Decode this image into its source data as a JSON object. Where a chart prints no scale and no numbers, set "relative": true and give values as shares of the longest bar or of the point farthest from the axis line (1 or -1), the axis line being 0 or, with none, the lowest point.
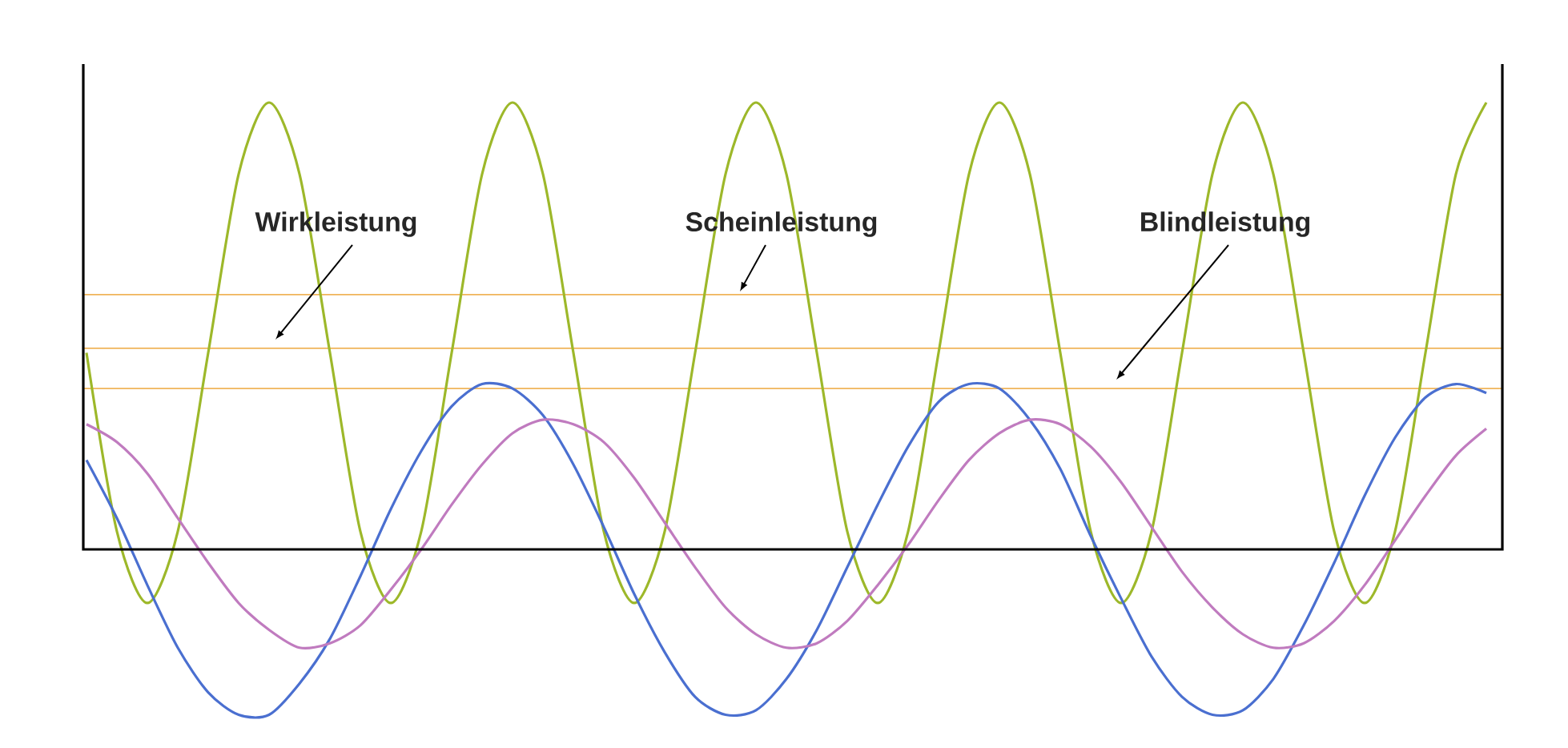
{
  "chart_data": {
    "type": "line",
    "relative": true,
    "categories": [
      null,
      null,
      null,
      null,
      null,
      null,
      null,
      null,
      null,
      null,
      null,
      null,
      null,
      null,
      null,
      null,
      null,
      null,
      null,
      null,
      null,
      null,
      null,
      null,
      null,
      null,
      null,
      null,
      null,
      null,
      null,
      null,
      null,
      null,
      null,
      null,
      null,
      null,
      null,
      null,
      null,
      null,
      null,
      null,
      null,
      null,
      null
    ],
    "series": [
      {
        "color": "#9db82a",
        "values": [
          0.44,
          0.04,
          -0.12,
          0.04,
          0.44,
          0.84,
          1,
          0.84,
          0.44,
          0.04,
          -0.12,
          0.04,
          0.44,
          0.84,
          1,
          0.84,
          0.44,
          0.04,
          -0.12,
          0.04,
          0.44,
          0.84,
          1,
          0.84,
          0.44,
          0.04,
          -0.12,
          0.04,
          0.44,
          0.84,
          1,
          0.84,
          0.44,
          0.04,
          -0.12,
          0.04,
          0.44,
          0.84,
          1,
          0.84,
          0.44,
          0.04,
          -0.12,
          0.04,
          0.44,
          0.84,
          1
        ]
      },
      {
        "color": "#4a6fd0",
        "values": [
          0.2,
          0.07,
          -0.08,
          -0.22,
          -0.32,
          -0.37,
          -0.37,
          -0.3,
          -0.2,
          -0.06,
          0.09,
          0.22,
          0.32,
          0.37,
          0.36,
          0.3,
          0.19,
          0.05,
          -0.1,
          -0.23,
          -0.33,
          -0.37,
          -0.36,
          -0.29,
          -0.18,
          -0.04,
          0.1,
          0.23,
          0.33,
          0.37,
          0.36,
          0.29,
          0.18,
          0.03,
          -0.11,
          -0.24,
          -0.33,
          -0.37,
          -0.36,
          -0.29,
          -0.17,
          -0.03,
          0.12,
          0.25,
          0.34,
          0.37,
          0.35
        ]
      },
      {
        "color": "#c07bbf",
        "values": [
          0.28,
          0.24,
          0.17,
          0.07,
          -0.03,
          -0.12,
          -0.18,
          -0.22,
          -0.21,
          -0.17,
          -0.09,
          0.0,
          0.1,
          0.19,
          0.26,
          0.29,
          0.28,
          0.24,
          0.16,
          0.06,
          -0.04,
          -0.13,
          -0.19,
          -0.22,
          -0.21,
          -0.16,
          -0.08,
          0.01,
          0.11,
          0.2,
          0.26,
          0.29,
          0.28,
          0.23,
          0.15,
          0.05,
          -0.05,
          -0.13,
          -0.19,
          -0.22,
          -0.21,
          -0.16,
          -0.08,
          0.02,
          0.12,
          0.21,
          0.27
        ]
      }
    ],
    "ref_lines": [
      {
        "axis": "y",
        "value": 0.57,
        "color": "#f0b45a"
      },
      {
        "axis": "y",
        "value": 0.45,
        "color": "#f0b45a"
      },
      {
        "axis": "y",
        "value": 0.36,
        "color": "#f0b45a"
      }
    ],
    "annotations": [
      "Wirkleistung",
      "Scheinleistung",
      "Blindleistung"
    ]
  }
}
